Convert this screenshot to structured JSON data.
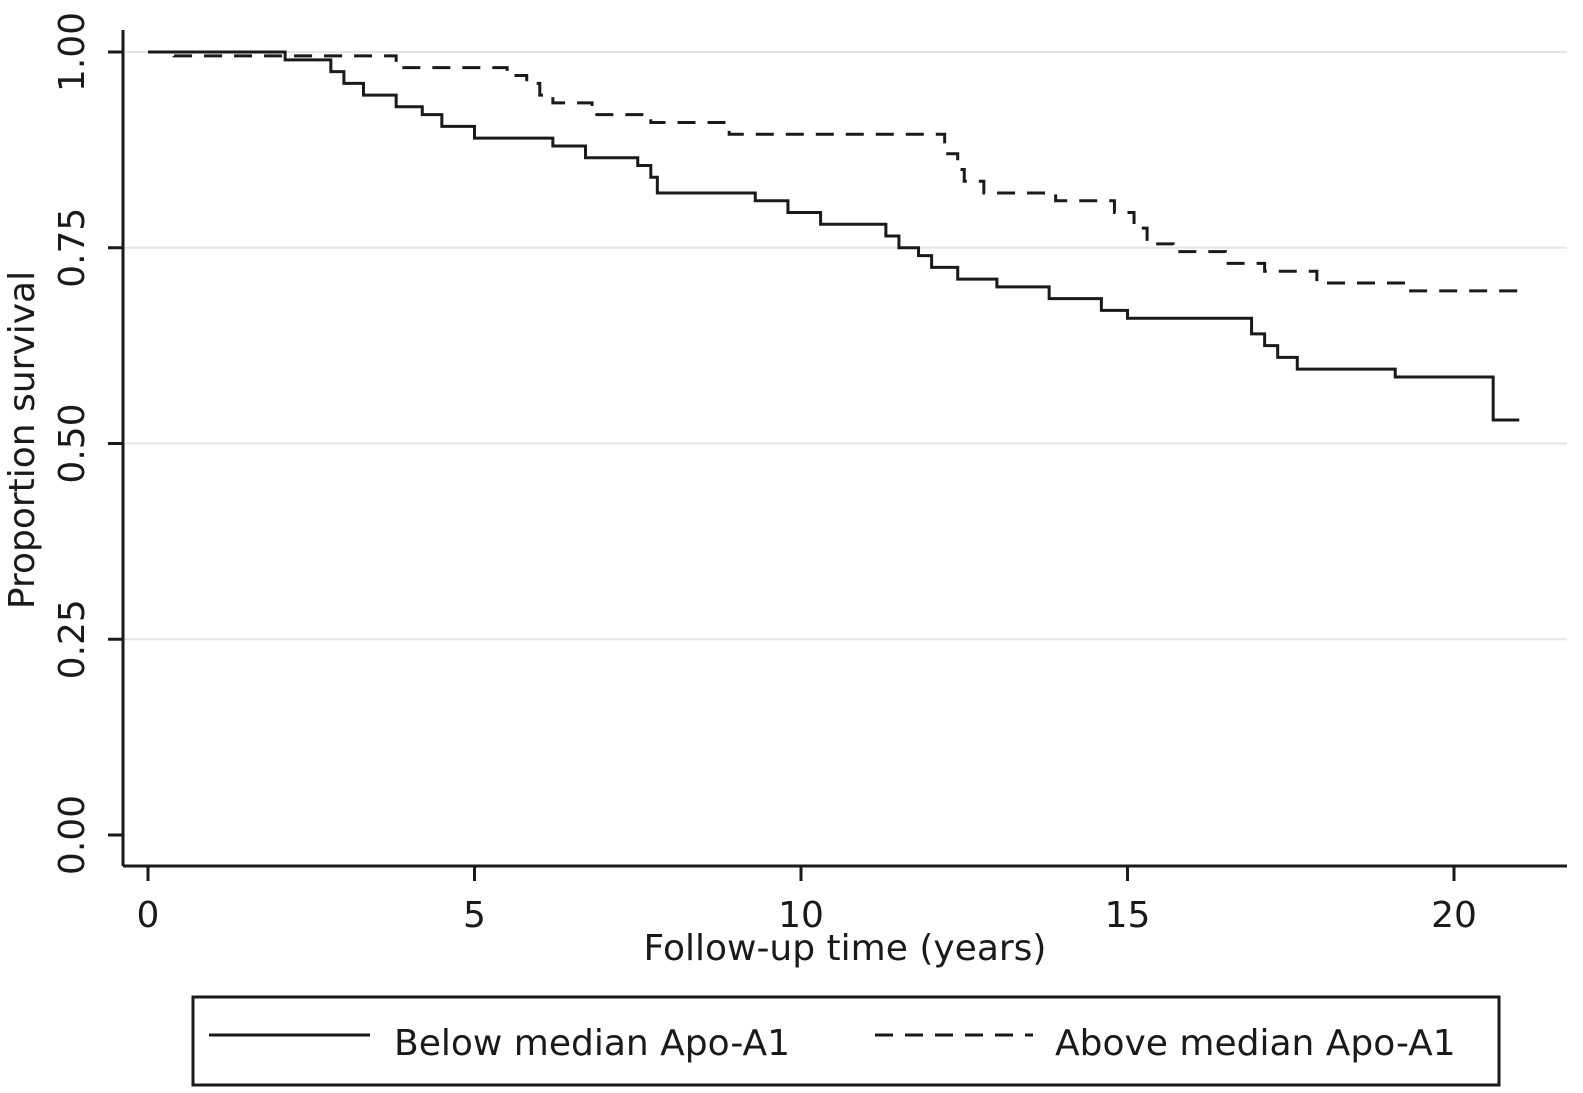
{
  "chart_data": {
    "type": "line",
    "subtype": "kaplan-meier step",
    "title": "",
    "xlabel": "Follow-up time (years)",
    "ylabel": "Proportion survival",
    "xlim": [
      0,
      21
    ],
    "ylim": [
      0,
      1
    ],
    "x_ticks": [
      0,
      5,
      10,
      15,
      20
    ],
    "x_tick_labels": [
      "0",
      "5",
      "10",
      "15",
      "20"
    ],
    "y_ticks": [
      0,
      0.25,
      0.5,
      0.75,
      1.0
    ],
    "y_tick_labels": [
      "0.00",
      "0.25",
      "0.50",
      "0.75",
      "1.00"
    ],
    "grid": "horizontal",
    "legend_position": "bottom",
    "series": [
      {
        "name": "Below median Apo-A1",
        "style": "solid",
        "color": "#1a1a1a",
        "steps": [
          [
            0,
            1.0
          ],
          [
            2.1,
            0.99
          ],
          [
            2.8,
            0.975
          ],
          [
            3.0,
            0.96
          ],
          [
            3.3,
            0.945
          ],
          [
            3.8,
            0.93
          ],
          [
            4.2,
            0.92
          ],
          [
            4.5,
            0.905
          ],
          [
            5.0,
            0.89
          ],
          [
            6.2,
            0.88
          ],
          [
            6.7,
            0.865
          ],
          [
            7.5,
            0.855
          ],
          [
            7.7,
            0.84
          ],
          [
            7.8,
            0.82
          ],
          [
            9.3,
            0.81
          ],
          [
            9.8,
            0.795
          ],
          [
            10.3,
            0.78
          ],
          [
            11.3,
            0.765
          ],
          [
            11.5,
            0.75
          ],
          [
            11.8,
            0.74
          ],
          [
            12.0,
            0.725
          ],
          [
            12.4,
            0.71
          ],
          [
            13.0,
            0.7
          ],
          [
            13.8,
            0.685
          ],
          [
            14.6,
            0.67
          ],
          [
            15.0,
            0.66
          ],
          [
            16.9,
            0.64
          ],
          [
            17.1,
            0.625
          ],
          [
            17.3,
            0.61
          ],
          [
            17.6,
            0.595
          ],
          [
            19.1,
            0.585
          ],
          [
            20.6,
            0.53
          ],
          [
            21.0,
            0.53
          ]
        ]
      },
      {
        "name": "Above median Apo-A1",
        "style": "dashed",
        "color": "#1a1a1a",
        "steps": [
          [
            0,
            1.0
          ],
          [
            0.4,
            0.995
          ],
          [
            3.8,
            0.98
          ],
          [
            5.5,
            0.97
          ],
          [
            5.8,
            0.96
          ],
          [
            6.0,
            0.945
          ],
          [
            6.2,
            0.935
          ],
          [
            6.8,
            0.92
          ],
          [
            7.7,
            0.91
          ],
          [
            8.9,
            0.895
          ],
          [
            12.2,
            0.87
          ],
          [
            12.4,
            0.85
          ],
          [
            12.5,
            0.835
          ],
          [
            12.8,
            0.82
          ],
          [
            13.9,
            0.81
          ],
          [
            14.8,
            0.795
          ],
          [
            15.1,
            0.775
          ],
          [
            15.3,
            0.755
          ],
          [
            15.7,
            0.745
          ],
          [
            16.5,
            0.73
          ],
          [
            17.1,
            0.72
          ],
          [
            17.9,
            0.705
          ],
          [
            19.3,
            0.695
          ],
          [
            21.1,
            0.695
          ]
        ]
      }
    ]
  },
  "colors": {
    "line": "#1a1a1a",
    "axis": "#1a1a1a",
    "grid": "#e6e6e6",
    "background": "#ffffff"
  }
}
